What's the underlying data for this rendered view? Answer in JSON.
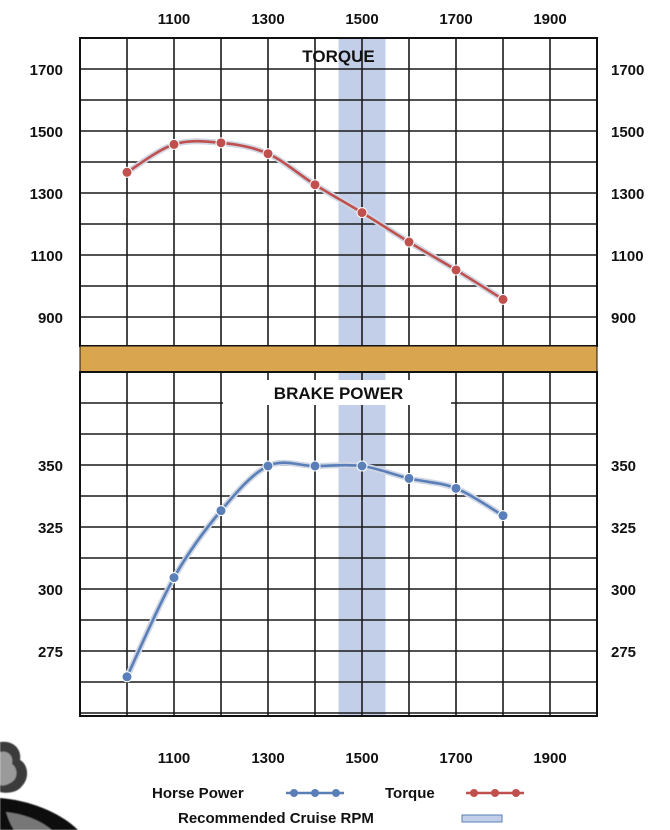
{
  "chart_data": {
    "type": "line",
    "x_ticks": [
      1100,
      1300,
      1500,
      1700,
      1900
    ],
    "xlim": [
      900,
      2000
    ],
    "cruise_band": [
      1450,
      1550
    ],
    "colors": {
      "horse_power": "#5a7fb8",
      "torque": "#c0504d",
      "cruise_band": "#c3cfe8",
      "divider": "#d9a54f",
      "grid": "#1a1a1a"
    },
    "panels": [
      {
        "title": "TORQUE",
        "y_ticks": [
          900,
          1100,
          1300,
          1500,
          1700
        ],
        "series": [
          {
            "key": "torque",
            "x": [
              1000,
              1100,
              1200,
              1300,
              1400,
              1500,
              1600,
              1700,
              1800
            ],
            "y": [
              1370,
              1460,
              1465,
              1430,
              1330,
              1240,
              1145,
              1055,
              960
            ]
          }
        ]
      },
      {
        "title": "BRAKE POWER",
        "y_ticks": [
          275,
          300,
          325,
          350
        ],
        "series": [
          {
            "key": "horse_power",
            "x": [
              1000,
              1100,
              1200,
              1300,
              1400,
              1500,
              1600,
              1700,
              1800
            ],
            "y": [
              265,
              305,
              332,
              350,
              350,
              350,
              345,
              341,
              330
            ]
          }
        ]
      }
    ],
    "legend": {
      "horse_power": "Horse Power",
      "torque": "Torque",
      "cruise": "Recommended Cruise RPM"
    }
  }
}
